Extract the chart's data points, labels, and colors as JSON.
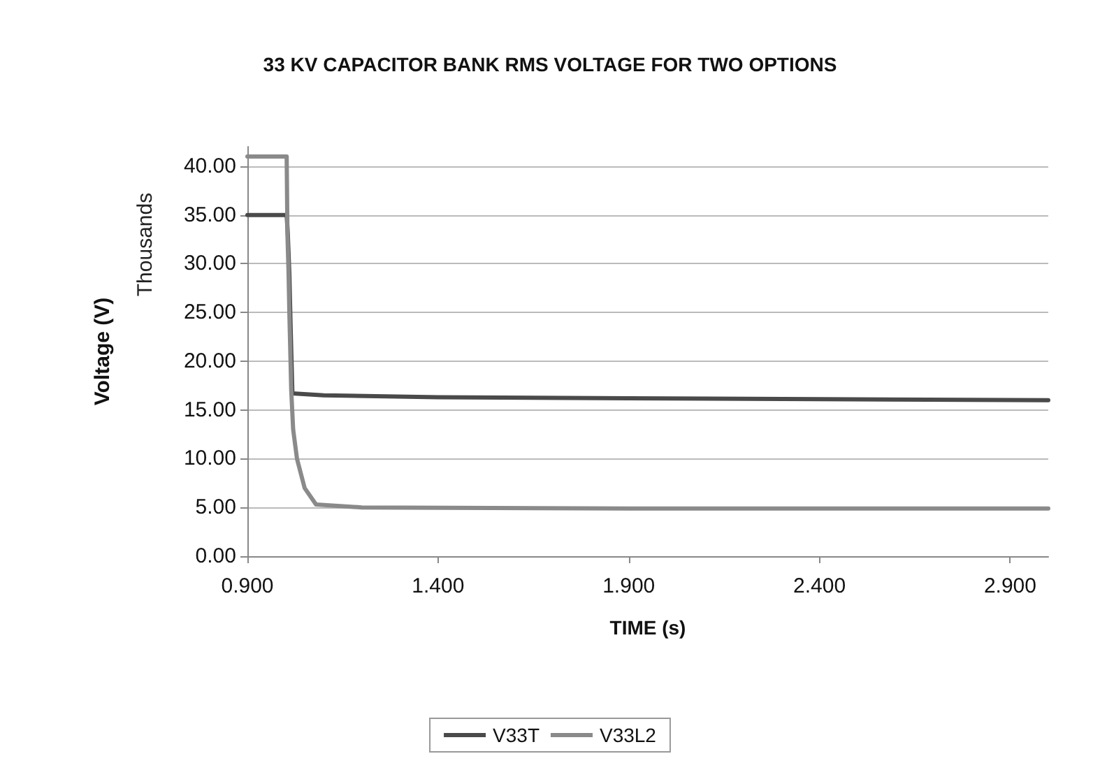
{
  "chart_data": {
    "type": "line",
    "title": "33 KV CAPACITOR BANK RMS VOLTAGE FOR TWO OPTIONS",
    "xlabel": "TIME (s)",
    "ylabel": "Voltage (V)",
    "annotations": [
      "Thousands"
    ],
    "xlim": [
      0.9,
      3.0
    ],
    "xticks": [
      {
        "value": 0.9,
        "label": "0.900"
      },
      {
        "value": 1.4,
        "label": "1.400"
      },
      {
        "value": 1.9,
        "label": "1.900"
      },
      {
        "value": 2.4,
        "label": "2.400"
      },
      {
        "value": 2.9,
        "label": "2.900"
      }
    ],
    "ylim": [
      0,
      42
    ],
    "yticks": [
      {
        "value": 0,
        "label": "0.00"
      },
      {
        "value": 5,
        "label": "5.00"
      },
      {
        "value": 10,
        "label": "10.00"
      },
      {
        "value": 15,
        "label": "15.00"
      },
      {
        "value": 20,
        "label": "20.00"
      },
      {
        "value": 25,
        "label": "25.00"
      },
      {
        "value": 30,
        "label": "30.00"
      },
      {
        "value": 35,
        "label": "35.00"
      },
      {
        "value": 40,
        "label": "40.00"
      }
    ],
    "grid": "y",
    "legend": "bottom",
    "marker": "none",
    "line_style": "solid",
    "series": [
      {
        "name": "V33T",
        "color": "#4a4a4a",
        "x": [
          0.9,
          1.003,
          1.006,
          1.01,
          1.013,
          1.018,
          1.1,
          1.4,
          1.9,
          2.4,
          3.0
        ],
        "values": [
          35,
          35,
          33,
          29,
          24,
          16.7,
          16.5,
          16.3,
          16.2,
          16.1,
          16.0
        ]
      },
      {
        "name": "V33L2",
        "color": "#8a8a8a",
        "x": [
          0.9,
          1.003,
          1.005,
          1.008,
          1.01,
          1.015,
          1.02,
          1.03,
          1.05,
          1.08,
          1.2,
          1.9,
          3.0
        ],
        "values": [
          41,
          41,
          33,
          29,
          25,
          17,
          13,
          10,
          7,
          5.3,
          5.0,
          4.9,
          4.9
        ]
      }
    ]
  }
}
